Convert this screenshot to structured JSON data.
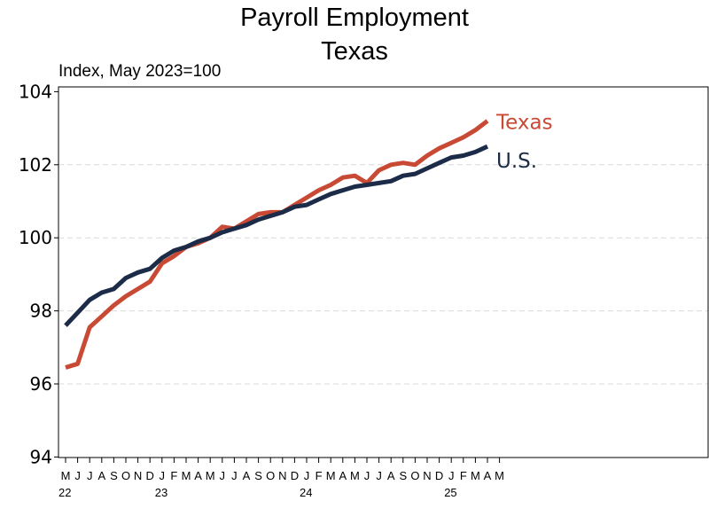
{
  "chart_data": {
    "type": "line",
    "title": "Payroll Employment",
    "subtitle": "Texas",
    "ylabel": "Index, May 2023=100",
    "ylim": [
      94,
      104
    ],
    "yticks": [
      94,
      96,
      98,
      100,
      102,
      104
    ],
    "grid": true,
    "x_month_labels": [
      "M",
      "J",
      "J",
      "A",
      "S",
      "O",
      "N",
      "D",
      "J",
      "F",
      "M",
      "A",
      "M",
      "J",
      "J",
      "A",
      "S",
      "O",
      "N",
      "D",
      "J",
      "F",
      "M",
      "A",
      "M",
      "J",
      "J",
      "A",
      "S",
      "O",
      "N",
      "D",
      "J",
      "F",
      "M",
      "A",
      "M"
    ],
    "year_labels": [
      {
        "label": "22",
        "month_index": 0
      },
      {
        "label": "23",
        "month_index": 8
      },
      {
        "label": "24",
        "month_index": 20
      },
      {
        "label": "25",
        "month_index": 32
      }
    ],
    "series": [
      {
        "name": "Texas",
        "color": "#c94a34",
        "values": [
          96.45,
          96.55,
          97.55,
          97.85,
          98.15,
          98.4,
          98.6,
          98.8,
          99.3,
          99.5,
          99.75,
          99.85,
          100.0,
          100.3,
          100.25,
          100.45,
          100.65,
          100.7,
          100.7,
          100.9,
          101.1,
          101.3,
          101.45,
          101.65,
          101.7,
          101.5,
          101.85,
          102.0,
          102.05,
          102.0,
          102.25,
          102.45,
          102.6,
          102.75,
          102.95,
          103.2
        ]
      },
      {
        "name": "U.S.",
        "color": "#1b2b48",
        "values": [
          97.6,
          97.95,
          98.3,
          98.5,
          98.6,
          98.9,
          99.05,
          99.15,
          99.45,
          99.65,
          99.75,
          99.9,
          100.0,
          100.15,
          100.25,
          100.35,
          100.5,
          100.6,
          100.7,
          100.85,
          100.9,
          101.05,
          101.2,
          101.3,
          101.4,
          101.45,
          101.5,
          101.55,
          101.7,
          101.75,
          101.9,
          102.05,
          102.2,
          102.25,
          102.35,
          102.5
        ]
      }
    ]
  }
}
